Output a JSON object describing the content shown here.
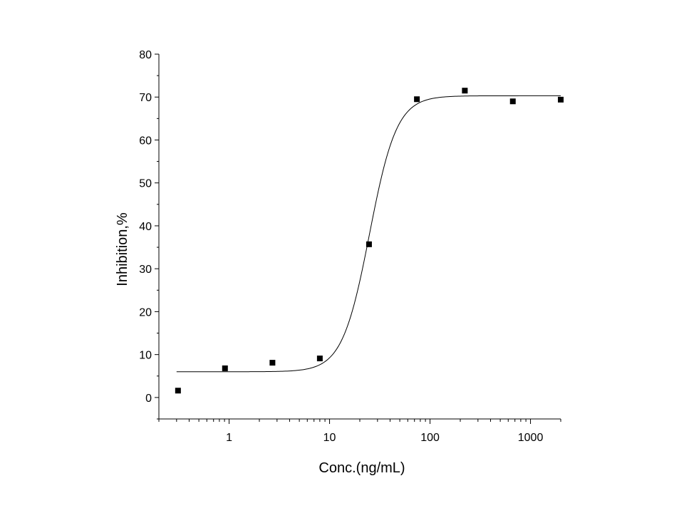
{
  "chart_data": {
    "type": "scatter",
    "title": "",
    "xlabel": "Conc.(ng/mL)",
    "ylabel": "Inhibition,%",
    "x_scale": "log",
    "xlim": [
      0.2,
      2000
    ],
    "ylim": [
      -5,
      80
    ],
    "x_ticks": [
      1,
      10,
      100,
      1000
    ],
    "x_tick_labels": [
      "1",
      "10",
      "100",
      "1000"
    ],
    "y_ticks": [
      0,
      10,
      20,
      30,
      40,
      50,
      60,
      70,
      80
    ],
    "y_tick_labels": [
      "0",
      "10",
      "20",
      "30",
      "40",
      "50",
      "60",
      "70",
      "80"
    ],
    "grid": false,
    "legend": "none",
    "colors": {
      "points": "#000000",
      "curve": "#000000",
      "axes": "#000000"
    },
    "series": [
      {
        "kind": "points",
        "x": [
          0.31,
          0.91,
          2.7,
          8.0,
          24.7,
          74,
          222,
          667,
          2000
        ],
        "y": [
          1.6,
          6.8,
          8.1,
          9.1,
          35.7,
          69.5,
          71.5,
          69.0,
          69.4
        ]
      },
      {
        "kind": "fit-curve",
        "model": "4PL",
        "bottom": 6.0,
        "top": 70.3,
        "ec50": 25,
        "hill": 3.2,
        "x_range": [
          0.3,
          2000
        ]
      }
    ]
  }
}
